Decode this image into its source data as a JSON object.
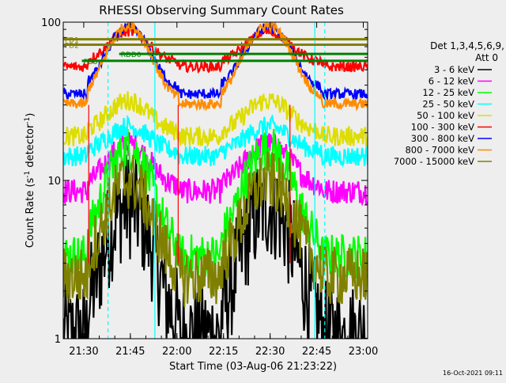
{
  "chart_data": {
    "type": "line",
    "title": "RHESSI Observing Summary Count Rates",
    "xlabel": "Start Time (03-Aug-06 21:23:22)",
    "ylabel_main": "Count Rate (s",
    "ylabel_sup1": "-1",
    "ylabel_mid": " detector",
    "ylabel_sup2": "-1",
    "ylabel_end": ")",
    "y_scale": "log",
    "ylim": [
      1,
      100
    ],
    "xlim_minutes": [
      0,
      98
    ],
    "x_ticks": [
      {
        "label": "21:30",
        "minute": 6.6
      },
      {
        "label": "21:45",
        "minute": 21.6
      },
      {
        "label": "22:00",
        "minute": 36.6
      },
      {
        "label": "22:15",
        "minute": 51.6
      },
      {
        "label": "22:30",
        "minute": 66.6
      },
      {
        "label": "22:45",
        "minute": 81.6
      },
      {
        "label": "23:00",
        "minute": 96.6
      }
    ],
    "y_ticks": [
      {
        "label": "1",
        "value": 1
      },
      {
        "label": "10",
        "value": 10
      },
      {
        "label": "100",
        "value": 100
      }
    ],
    "detectors": "Det 1,3,4,5,6,9,",
    "attenuator": "Att 0",
    "timestamp": "16-Oct-2021 09:11",
    "flags": [
      {
        "label": "FD1",
        "start": 0,
        "end": 98,
        "level": 78,
        "color": "#808000"
      },
      {
        "label": "FD2",
        "start": 0,
        "end": 98,
        "level": 72,
        "color": "#808000"
      },
      {
        "label": "RDD0",
        "start": 18,
        "end": 98,
        "level": 63,
        "color": "#008000"
      },
      {
        "label": "FD6",
        "start": 6,
        "end": 98,
        "level": 57,
        "color": "#008000"
      }
    ],
    "cyan_lines": [
      {
        "minute": 0,
        "style": "solid"
      },
      {
        "minute": 14.4,
        "style": "dashed"
      },
      {
        "minute": 29.5,
        "style": "solid"
      },
      {
        "minute": 81.0,
        "style": "solid"
      },
      {
        "minute": 84.2,
        "style": "dashed"
      },
      {
        "minute": 98,
        "style": "dashed"
      }
    ],
    "red_vlines": [
      8.2,
      37.0,
      73.0
    ],
    "series": [
      {
        "name": "3 - 6 keV",
        "color": "#000000",
        "base": 1.1,
        "peak": 7.0,
        "noise": 0.22
      },
      {
        "name": "6 - 12 keV",
        "color": "#ff00ff",
        "base": 9.0,
        "peak": 17.0,
        "noise": 0.05
      },
      {
        "name": "12 - 25 keV",
        "color": "#00ff00",
        "base": 3.5,
        "peak": 16.0,
        "noise": 0.09
      },
      {
        "name": "25 - 50 keV",
        "color": "#00ffff",
        "base": 15.0,
        "peak": 22.0,
        "noise": 0.04
      },
      {
        "name": "50 - 100 keV",
        "color": "#dddd00",
        "base": 20.0,
        "peak": 32.0,
        "noise": 0.04
      },
      {
        "name": "100 - 300 keV",
        "color": "#ff0000",
        "base": 55.0,
        "peak": 87.0,
        "noise": 0.02
      },
      {
        "name": "300 - 800 keV",
        "color": "#0000ff",
        "base": 37.0,
        "peak": 92.0,
        "noise": 0.02
      },
      {
        "name": "800 - 7000 keV",
        "color": "#ff8c00",
        "base": 32.0,
        "peak": 95.0,
        "noise": 0.02
      },
      {
        "name": "7000 - 15000 keV",
        "color": "#808000",
        "base": 2.6,
        "peak": 10.0,
        "noise": 0.12
      }
    ]
  }
}
